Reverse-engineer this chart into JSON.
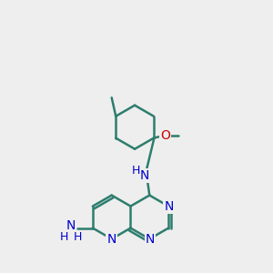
{
  "bg_color": "#eeeeee",
  "bond_color": "#2d7d6e",
  "bond_width": 1.8,
  "n_color": "#0000cc",
  "o_color": "#cc0000",
  "text_size": 10,
  "small_text_size": 9,
  "fig_w": 3.0,
  "fig_h": 3.0,
  "dpi": 100,
  "xlim": [
    -2.0,
    2.5
  ],
  "ylim": [
    -2.6,
    2.6
  ]
}
